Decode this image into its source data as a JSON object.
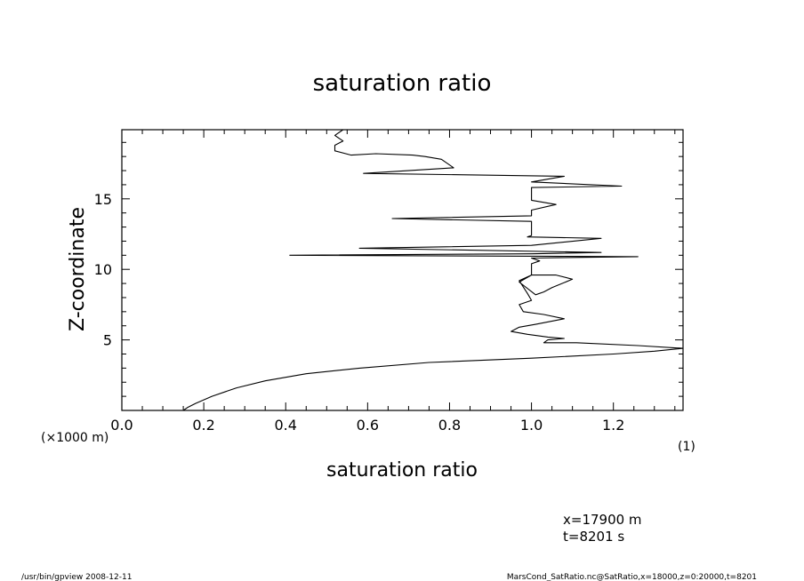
{
  "chart_data": {
    "type": "line",
    "title": "saturation ratio",
    "xlabel": "saturation ratio",
    "ylabel": "Z-coordinate",
    "x_unit_label": "(1)",
    "y_unit_label": "(×1000 m)",
    "xlim": [
      0.0,
      1.37
    ],
    "ylim": [
      0.0,
      19.9
    ],
    "x_ticks": [
      {
        "v": 0.0,
        "label": "0.0"
      },
      {
        "v": 0.2,
        "label": "0.2"
      },
      {
        "v": 0.4,
        "label": "0.4"
      },
      {
        "v": 0.6,
        "label": "0.6"
      },
      {
        "v": 0.8,
        "label": "0.8"
      },
      {
        "v": 1.0,
        "label": "1.0"
      },
      {
        "v": 1.2,
        "label": "1.2"
      }
    ],
    "y_ticks": [
      {
        "v": 5,
        "label": "5"
      },
      {
        "v": 10,
        "label": "10"
      },
      {
        "v": 15,
        "label": "15"
      }
    ],
    "grid": false,
    "series": [
      {
        "name": "",
        "x": [
          0.15,
          0.16,
          0.18,
          0.22,
          0.28,
          0.35,
          0.45,
          0.58,
          0.75,
          1.0,
          1.2,
          1.3,
          1.37,
          1.26,
          1.11,
          1.03,
          1.04,
          1.08,
          1.04,
          0.99,
          0.95,
          0.97,
          1.01,
          1.08,
          1.03,
          0.98,
          0.97,
          1.0,
          0.99,
          0.97,
          1.0,
          1.06,
          1.1,
          1.05,
          1.03,
          1.01,
          0.97,
          1.0,
          1.0,
          1.02,
          1.0,
          1.26,
          0.41,
          1.0,
          1.17,
          0.58,
          1.0,
          1.17,
          0.99,
          1.0,
          1.0,
          0.66,
          1.0,
          1.0,
          1.06,
          1.0,
          1.0,
          1.22,
          1.0,
          1.08,
          0.59,
          0.81,
          0.78,
          0.74,
          0.71,
          0.62,
          0.56,
          0.52,
          0.52,
          0.54,
          0.52,
          0.54
        ],
        "y": [
          0.0,
          0.2,
          0.5,
          1.0,
          1.6,
          2.1,
          2.6,
          3.0,
          3.4,
          3.7,
          4.0,
          4.2,
          4.4,
          4.6,
          4.8,
          4.8,
          5.0,
          5.1,
          5.2,
          5.4,
          5.6,
          5.9,
          6.1,
          6.5,
          6.8,
          7.0,
          7.5,
          7.8,
          8.3,
          9.2,
          9.6,
          9.6,
          9.3,
          8.7,
          8.4,
          8.2,
          9.1,
          9.6,
          10.4,
          10.6,
          10.8,
          10.9,
          11.0,
          11.1,
          11.2,
          11.5,
          11.7,
          12.2,
          12.3,
          12.4,
          13.4,
          13.6,
          13.8,
          14.2,
          14.6,
          14.9,
          15.8,
          15.9,
          16.2,
          16.6,
          16.8,
          17.2,
          17.8,
          18.0,
          18.1,
          18.2,
          18.1,
          18.4,
          18.8,
          19.1,
          19.5,
          19.9
        ]
      }
    ]
  },
  "annotations": {
    "x_position": "x=17900 m",
    "t_time": "t=8201 s"
  },
  "footer": {
    "left": "/usr/bin/gpview   2008-12-11",
    "right": "MarsCond_SatRatio.nc@SatRatio,x=18000,z=0:20000,t=8201"
  }
}
